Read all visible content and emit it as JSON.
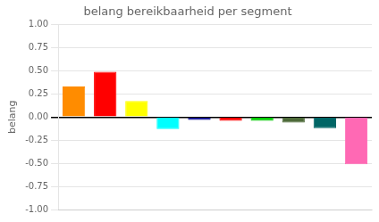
{
  "chart_data": {
    "type": "bar",
    "title": "belang bereikbaarheid per segment",
    "ylabel": "belang",
    "categories": [
      null,
      null,
      null,
      null,
      null,
      null,
      null,
      null,
      null,
      null
    ],
    "values": [
      0.33,
      0.49,
      0.175,
      -0.13,
      -0.03,
      -0.04,
      -0.04,
      -0.06,
      -0.12,
      -0.51
    ],
    "colors": [
      "#FF8C00",
      "#FF0000",
      "#FFFF00",
      "#00FFFF",
      "#00008B",
      "#FF0000",
      "#00CC00",
      "#4E6B3A",
      "#006666",
      "#FF69B4"
    ],
    "ylim": [
      -1.0,
      1.0
    ],
    "yticks": [
      {
        "value": -1.0,
        "label": "-1.00"
      },
      {
        "value": -0.75,
        "label": "-0.75"
      },
      {
        "value": -0.5,
        "label": "-0.50"
      },
      {
        "value": -0.25,
        "label": "-0.25"
      },
      {
        "value": 0.0,
        "label": "0.00"
      },
      {
        "value": 0.25,
        "label": "0.25"
      },
      {
        "value": 0.5,
        "label": "0.50"
      },
      {
        "value": 0.75,
        "label": "0.75"
      },
      {
        "value": 1.0,
        "label": "1.00"
      }
    ],
    "grid": true,
    "tick_labels": "y"
  }
}
